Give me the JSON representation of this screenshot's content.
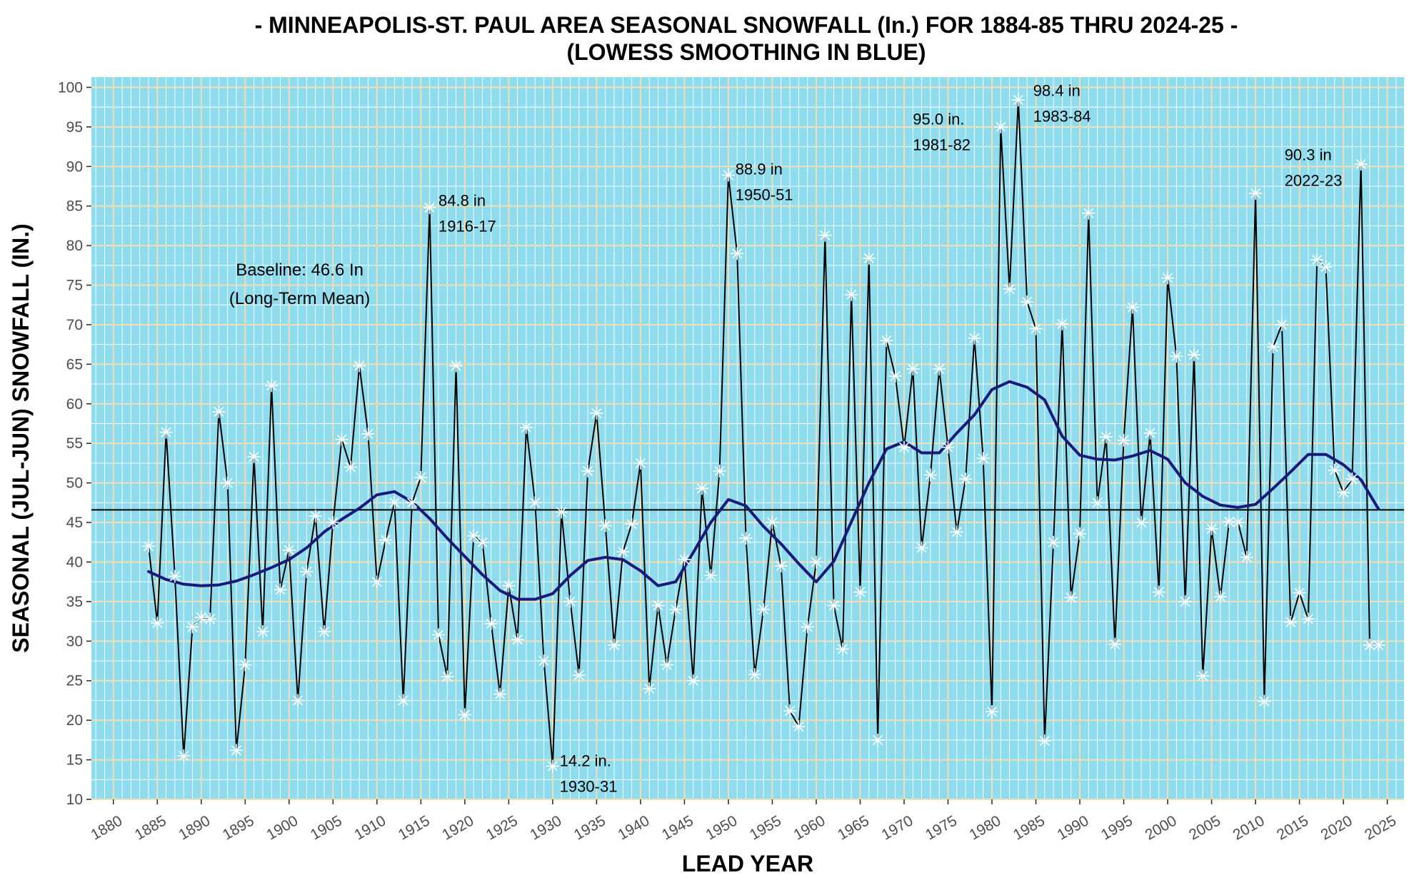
{
  "chart_data": {
    "type": "line",
    "title": "- MINNEAPOLIS-ST. PAUL AREA SEASONAL SNOWFALL (In.) FOR 1884-85 THRU 2024-25 -",
    "subtitle": "(LOWESS SMOOTHING IN BLUE)",
    "xlabel": "LEAD YEAR",
    "ylabel": "SEASONAL (JUL-JUN) SNOWFALL (IN.)",
    "xlim": [
      1877.5,
      2026.9
    ],
    "ylim": [
      10,
      101.3
    ],
    "x_ticks": [
      "1880",
      "1885",
      "1890",
      "1895",
      "1900",
      "1905",
      "1910",
      "1915",
      "1920",
      "1925",
      "1930",
      "1935",
      "1940",
      "1945",
      "1950",
      "1955",
      "1960",
      "1965",
      "1970",
      "1975",
      "1980",
      "1985",
      "1990",
      "1995",
      "2000",
      "2005",
      "2010",
      "2015",
      "2020",
      "2025"
    ],
    "y_ticks": [
      "10",
      "15",
      "20",
      "25",
      "30",
      "35",
      "40",
      "45",
      "50",
      "55",
      "60",
      "65",
      "70",
      "75",
      "80",
      "85",
      "90",
      "95",
      "100"
    ],
    "grid": true,
    "colors": {
      "panel": "#8fdcee",
      "major_grid": "#f5deb3",
      "minor_grid": "#ffffff",
      "series_line": "#000000",
      "markers": "#ffffff",
      "smooth": "#1a1a7a",
      "baseline": "#000000"
    },
    "series": [
      {
        "name": "Seasonal snowfall",
        "x": [
          1884,
          1885,
          1886,
          1887,
          1888,
          1889,
          1890,
          1891,
          1892,
          1893,
          1894,
          1895,
          1896,
          1897,
          1898,
          1899,
          1900,
          1901,
          1902,
          1903,
          1904,
          1905,
          1906,
          1907,
          1908,
          1909,
          1910,
          1911,
          1912,
          1913,
          1914,
          1915,
          1916,
          1917,
          1918,
          1919,
          1920,
          1921,
          1922,
          1923,
          1924,
          1925,
          1926,
          1927,
          1928,
          1929,
          1930,
          1931,
          1932,
          1933,
          1934,
          1935,
          1936,
          1937,
          1938,
          1939,
          1940,
          1941,
          1942,
          1943,
          1944,
          1945,
          1946,
          1947,
          1948,
          1949,
          1950,
          1951,
          1952,
          1953,
          1954,
          1955,
          1956,
          1957,
          1958,
          1959,
          1960,
          1961,
          1962,
          1963,
          1964,
          1965,
          1966,
          1967,
          1968,
          1969,
          1970,
          1971,
          1972,
          1973,
          1974,
          1975,
          1976,
          1977,
          1978,
          1979,
          1980,
          1981,
          1982,
          1983,
          1984,
          1985,
          1986,
          1987,
          1988,
          1989,
          1990,
          1991,
          1992,
          1993,
          1994,
          1995,
          1996,
          1997,
          1998,
          1999,
          2000,
          2001,
          2002,
          2003,
          2004,
          2005,
          2006,
          2007,
          2008,
          2009,
          2010,
          2011,
          2012,
          2013,
          2014,
          2015,
          2016,
          2017,
          2018,
          2019,
          2020,
          2021,
          2022,
          2023,
          2024
        ],
        "values": [
          42.0,
          32.3,
          56.4,
          38.2,
          15.5,
          31.8,
          33.0,
          32.8,
          59.0,
          50.0,
          16.2,
          27.0,
          53.3,
          31.2,
          62.3,
          36.5,
          41.5,
          22.5,
          38.8,
          45.8,
          31.2,
          45.0,
          55.5,
          52.0,
          64.8,
          56.2,
          37.5,
          42.8,
          47.5,
          22.5,
          47.5,
          50.7,
          84.8,
          30.8,
          25.5,
          64.8,
          20.7,
          43.3,
          42.5,
          32.2,
          23.3,
          37.0,
          30.2,
          57.0,
          47.5,
          27.5,
          14.2,
          46.3,
          35.0,
          25.7,
          51.5,
          58.8,
          44.6,
          29.5,
          41.3,
          44.8,
          52.5,
          24.0,
          34.5,
          27.0,
          34.0,
          40.3,
          25.0,
          49.3,
          38.3,
          51.5,
          88.9,
          79.0,
          43.0,
          25.8,
          34.0,
          45.0,
          39.5,
          21.2,
          19.2,
          31.8,
          40.0,
          81.3,
          34.5,
          29.0,
          73.8,
          36.2,
          78.4,
          17.5,
          68.0,
          63.5,
          54.5,
          64.4,
          41.8,
          51.0,
          64.4,
          54.5,
          43.8,
          50.5,
          68.3,
          53.1,
          21.1,
          95.0,
          74.5,
          98.4,
          72.9,
          69.5,
          17.4,
          42.5,
          70.1,
          35.5,
          43.6,
          84.1,
          47.5,
          55.8,
          29.6,
          55.4,
          72.2,
          45.0,
          56.3,
          36.2,
          75.9,
          66.0,
          35.0,
          66.2,
          25.6,
          44.2,
          35.6,
          45.1,
          45.0,
          40.6,
          86.6,
          22.4,
          67.2,
          70.0,
          32.4,
          36.1,
          32.8,
          78.2,
          77.3,
          51.6,
          48.8,
          50.5,
          90.3,
          29.5,
          29.5
        ]
      },
      {
        "name": "LOWESS smoothing",
        "x": [
          1884,
          1886,
          1888,
          1890,
          1892,
          1894,
          1896,
          1898,
          1900,
          1902,
          1904,
          1906,
          1908,
          1910,
          1912,
          1914,
          1916,
          1918,
          1920,
          1922,
          1924,
          1926,
          1928,
          1930,
          1932,
          1934,
          1936,
          1938,
          1940,
          1942,
          1944,
          1946,
          1948,
          1950,
          1952,
          1954,
          1956,
          1958,
          1960,
          1962,
          1964,
          1966,
          1968,
          1970,
          1972,
          1974,
          1976,
          1978,
          1980,
          1982,
          1984,
          1986,
          1988,
          1990,
          1992,
          1994,
          1996,
          1998,
          2000,
          2002,
          2004,
          2006,
          2008,
          2010,
          2012,
          2014,
          2016,
          2018,
          2020,
          2022,
          2024
        ],
        "values": [
          38.8,
          37.8,
          37.2,
          37.0,
          37.1,
          37.6,
          38.4,
          39.3,
          40.3,
          41.8,
          43.8,
          45.4,
          46.8,
          48.5,
          48.9,
          47.6,
          45.5,
          43.0,
          40.7,
          38.4,
          36.4,
          35.3,
          35.3,
          36.0,
          38.3,
          40.2,
          40.6,
          40.3,
          38.9,
          37.0,
          37.5,
          41.2,
          45.0,
          47.9,
          47.1,
          44.5,
          42.3,
          39.8,
          37.5,
          40.1,
          45.1,
          50.0,
          54.3,
          55.2,
          53.8,
          53.8,
          56.3,
          58.6,
          61.8,
          62.8,
          62.1,
          60.5,
          55.9,
          53.5,
          53.0,
          52.9,
          53.4,
          54.1,
          53.0,
          50.0,
          48.3,
          47.2,
          46.9,
          47.3,
          49.3,
          51.4,
          53.6,
          53.6,
          52.3,
          50.4,
          46.7
        ]
      }
    ],
    "baseline": 46.6,
    "annotations": [
      {
        "x": 1901.2,
        "y": 76.2,
        "align": "middle",
        "size": "big",
        "lines": [
          "Baseline: 46.6 In",
          "(Long-Term Mean)"
        ]
      },
      {
        "x": 1917.0,
        "y": 85.0,
        "align": "start",
        "size": "normal",
        "lines": [
          "84.8 in",
          "1916-17"
        ]
      },
      {
        "x": 1930.8,
        "y": 14.2,
        "align": "start",
        "size": "normal",
        "lines": [
          "14.2 in.",
          "1930-31"
        ]
      },
      {
        "x": 1950.8,
        "y": 89.0,
        "align": "start",
        "size": "normal",
        "lines": [
          "88.9 in",
          "1950-51"
        ]
      },
      {
        "x": 1971.0,
        "y": 95.3,
        "align": "start",
        "size": "normal",
        "lines": [
          "95.0 in.",
          "1981-82"
        ]
      },
      {
        "x": 1984.7,
        "y": 98.9,
        "align": "start",
        "size": "normal",
        "lines": [
          "98.4 in",
          "1983-84"
        ]
      },
      {
        "x": 2013.3,
        "y": 90.8,
        "align": "start",
        "size": "normal",
        "lines": [
          "90.3 in",
          "2022-23"
        ]
      }
    ]
  }
}
